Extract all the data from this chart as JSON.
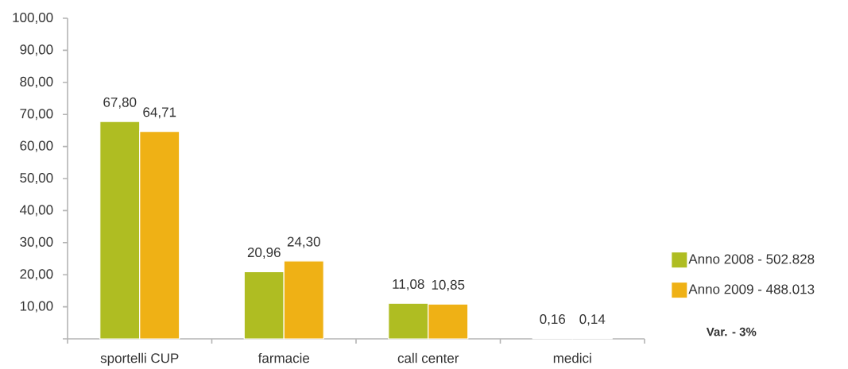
{
  "chart_data": {
    "type": "bar",
    "categories": [
      "sportelli CUP",
      "farmacie",
      "call center",
      "medici"
    ],
    "series": [
      {
        "name": "Anno 2008 - 502.828",
        "color": "#afbd22",
        "values": [
          67.8,
          20.96,
          11.08,
          0.16
        ],
        "value_labels": [
          "67,80",
          "20,96",
          "11,08",
          "0,16"
        ]
      },
      {
        "name": "Anno 2009 - 488.013",
        "color": "#efb115",
        "values": [
          64.71,
          24.3,
          10.85,
          0.14
        ],
        "value_labels": [
          "64,71",
          "24,30",
          "10,85",
          "0,14"
        ]
      }
    ],
    "ylim": [
      0,
      100
    ],
    "yticks": [
      {
        "value": 0,
        "label": null
      },
      {
        "value": 10,
        "label": "10,00"
      },
      {
        "value": 20,
        "label": "20,00"
      },
      {
        "value": 30,
        "label": "30,00"
      },
      {
        "value": 40,
        "label": "40,00"
      },
      {
        "value": 50,
        "label": "50,00"
      },
      {
        "value": 60,
        "label": "60,00"
      },
      {
        "value": 70,
        "label": "70,00"
      },
      {
        "value": 80,
        "label": "80,00"
      },
      {
        "value": 90,
        "label": "90,00"
      },
      {
        "value": 100,
        "label": "100,00"
      }
    ],
    "legend": "bottom right",
    "annotations": [
      "Var. - 3%"
    ]
  }
}
